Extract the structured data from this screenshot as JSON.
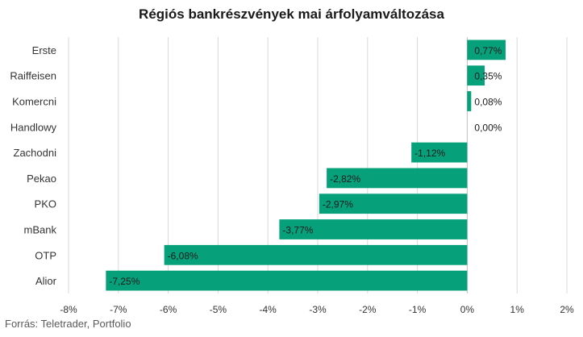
{
  "chart_data": {
    "type": "bar",
    "orientation": "horizontal",
    "title": "Régiós bankrészvények mai árfolyamváltozása",
    "categories": [
      "Erste",
      "Raiffeisen",
      "Komercni",
      "Handlowy",
      "Zachodni",
      "Pekao",
      "PKO",
      "mBank",
      "OTP",
      "Alior"
    ],
    "values": [
      0.77,
      0.35,
      0.08,
      0.0,
      -1.12,
      -2.82,
      -2.97,
      -3.77,
      -6.08,
      -7.25
    ],
    "data_labels": [
      "0,77%",
      "0,35%",
      "0,08%",
      "0,00%",
      "-1,12%",
      "-2,82%",
      "-2,97%",
      "-3,77%",
      "-6,08%",
      "-7,25%"
    ],
    "xlim": [
      -8,
      2
    ],
    "xticks": [
      -8,
      -7,
      -6,
      -5,
      -4,
      -3,
      -2,
      -1,
      0,
      1,
      2
    ],
    "xtick_labels": [
      "-8%",
      "-7%",
      "-6%",
      "-5%",
      "-4%",
      "-3%",
      "-2%",
      "-1%",
      "0%",
      "1%",
      "2%"
    ],
    "xlabel": "",
    "ylabel": "",
    "grid": "vertical",
    "bar_color": "#06a07a",
    "legend": "none"
  },
  "source": "Forrás: Teletrader, Portfolio"
}
